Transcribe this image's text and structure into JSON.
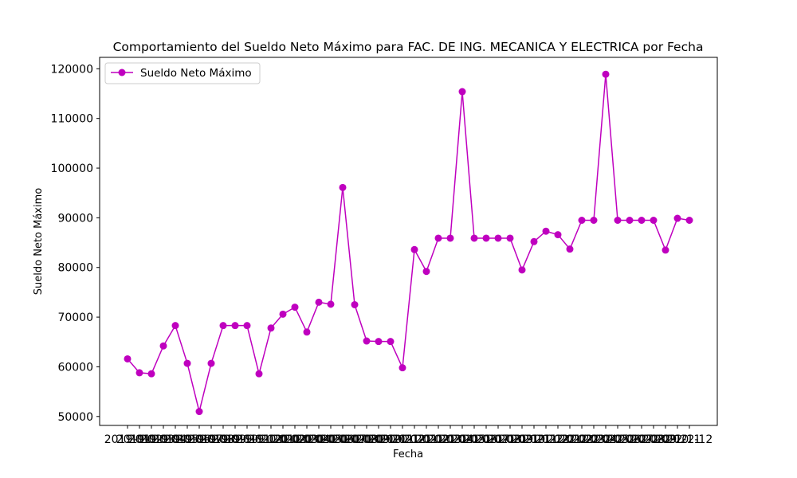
{
  "chart_data": {
    "type": "line",
    "title": "Comportamiento del Sueldo Neto Máximo para FAC. DE ING. MECANICA Y ELECTRICA por Fecha",
    "xlabel": "Fecha",
    "ylabel": "Sueldo Neto Máximo",
    "x_tick_labels": [
      "2019-01",
      "2019-02",
      "2019-03",
      "2019-04",
      "2019-05",
      "2019-06",
      "2019-07",
      "2019-08",
      "2019-09",
      "2019-10",
      "2019-11",
      "2019-12",
      "2020-01",
      "2020-02",
      "2020-03",
      "2020-04",
      "2020-05",
      "2020-06",
      "2020-07",
      "2020-08",
      "2020-09",
      "2020-10",
      "2020-11",
      "2020-12",
      "2021-01",
      "2021-02",
      "2021-03",
      "2021-04",
      "2021-05",
      "2021-06",
      "2021-07",
      "2021-08",
      "2021-09",
      "2021-10",
      "2021-11",
      "2021-12",
      "2022-01",
      "2022-02",
      "2022-03",
      "2022-04",
      "2022-05",
      "2022-06",
      "2022-07",
      "2022-08",
      "2022-09",
      "2022-10",
      "2022-11",
      "2022-12"
    ],
    "ylim": [
      48200,
      122300
    ],
    "y_ticks": [
      50000,
      60000,
      70000,
      80000,
      90000,
      100000,
      110000,
      120000
    ],
    "y_tick_labels": [
      "50000",
      "60000",
      "70000",
      "80000",
      "90000",
      "100000",
      "110000",
      "120000"
    ],
    "grid": false,
    "legend_position": "upper-left",
    "color": "#bf00bf",
    "series": [
      {
        "name": "Sueldo Neto Máximo",
        "values": [
          61600,
          58800,
          58600,
          64200,
          68300,
          60700,
          51000,
          60700,
          68300,
          68300,
          68300,
          58600,
          67800,
          70600,
          72000,
          67000,
          73000,
          72600,
          96100,
          72500,
          65200,
          65100,
          65100,
          59800,
          83600,
          79200,
          85900,
          85900,
          115400,
          85900,
          85900,
          85900,
          85900,
          79500,
          85200,
          87300,
          86600,
          83700,
          89500,
          89500,
          118900,
          89500,
          89500,
          89500,
          89500,
          83500,
          89900,
          89500
        ]
      }
    ]
  }
}
